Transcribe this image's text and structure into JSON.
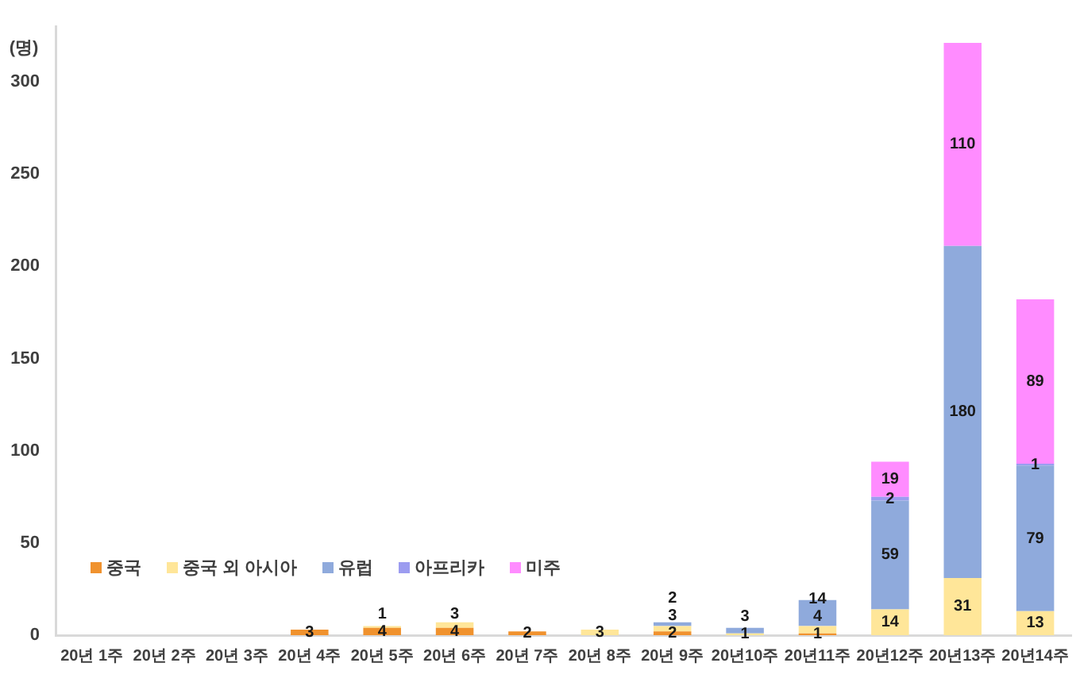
{
  "chart_data": {
    "type": "bar",
    "stacked": true,
    "ylabel": "(명)",
    "categories": [
      "20년 1주",
      "20년 2주",
      "20년 3주",
      "20년 4주",
      "20년 5주",
      "20년 6주",
      "20년 7주",
      "20년 8주",
      "20년 9주",
      "20년10주",
      "20년11주",
      "20년12주",
      "20년13주",
      "20년14주"
    ],
    "series": [
      {
        "name": "중국",
        "color": "#f0922e",
        "values": [
          null,
          null,
          null,
          3,
          4,
          4,
          2,
          null,
          2,
          null,
          1,
          null,
          null,
          null
        ]
      },
      {
        "name": "중국 외 아시아",
        "color": "#ffe699",
        "values": [
          null,
          null,
          null,
          null,
          1,
          3,
          null,
          3,
          3,
          1,
          4,
          14,
          31,
          13
        ]
      },
      {
        "name": "유럽",
        "color": "#8faadc",
        "values": [
          null,
          null,
          null,
          null,
          null,
          null,
          null,
          null,
          2,
          3,
          14,
          59,
          180,
          79
        ]
      },
      {
        "name": "아프리카",
        "color": "#9c9cf0",
        "values": [
          null,
          null,
          null,
          null,
          null,
          null,
          null,
          null,
          null,
          null,
          null,
          2,
          null,
          1
        ]
      },
      {
        "name": "미주",
        "color": "#ff8cff",
        "values": [
          null,
          null,
          null,
          null,
          null,
          null,
          null,
          null,
          null,
          null,
          null,
          19,
          110,
          89
        ]
      }
    ],
    "ylim": [
      0,
      330
    ],
    "yticks": [
      0,
      50,
      100,
      150,
      200,
      250,
      300
    ],
    "grid": false,
    "legend": "bottom left",
    "data_labels": true
  }
}
